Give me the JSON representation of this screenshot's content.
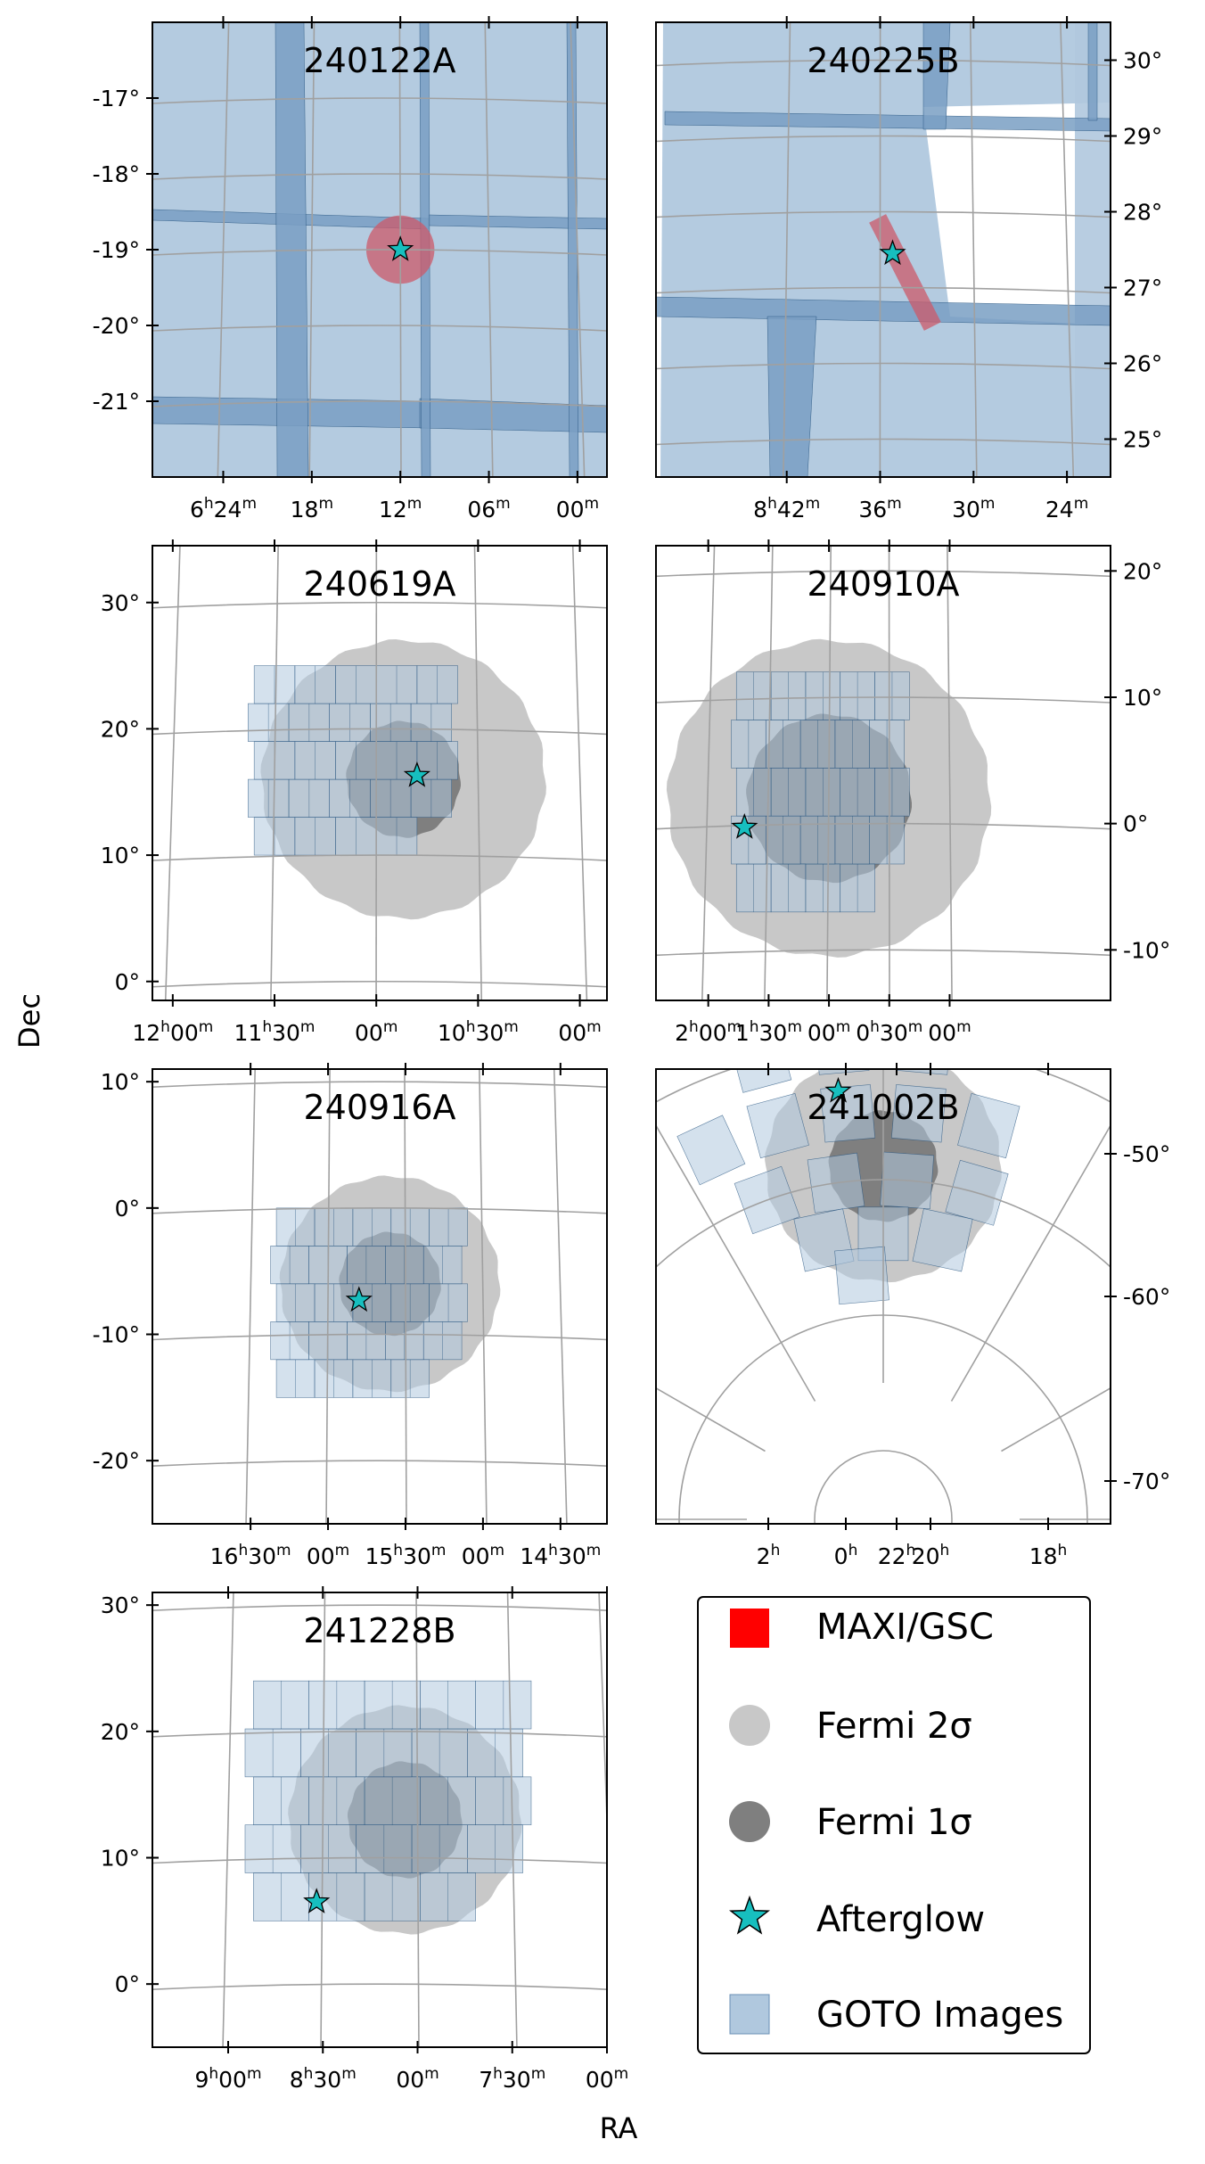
{
  "figure": {
    "xlabel": "RA",
    "ylabel": "Dec"
  },
  "legend": {
    "placement": "bottom-right panel",
    "items": [
      {
        "label": "MAXI/GSC",
        "marker": "square",
        "color": "#ff0000"
      },
      {
        "label": "Fermi 2σ",
        "marker": "circle",
        "color": "#c8c8c8"
      },
      {
        "label": "Fermi 1σ",
        "marker": "circle",
        "color": "#7f7f7f"
      },
      {
        "label": "Afterglow",
        "marker": "star",
        "color": "#17bfbf"
      },
      {
        "label": "GOTO Images",
        "marker": "square",
        "color": "#b0c8de"
      }
    ]
  },
  "colors": {
    "goto_fill": "#b0c8de",
    "goto_edge": "#1f4e7a",
    "goto_overlap": "#7a9fc4",
    "fermi_2sigma": "#c8c8c8",
    "fermi_1sigma": "#7f7f7f",
    "maxi": "#cc5a6a",
    "afterglow": "#17bfbf",
    "grid": "#a0a0a0"
  },
  "chart_data": [
    {
      "type": "scatter",
      "title": "240122A",
      "ra_min_deg": 89.5,
      "ra_max_deg": 97.2,
      "dec_min": -22.0,
      "dec_max": -16.0,
      "x_tick_labels": [
        {
          "h": "6",
          "m": "24",
          "ra_deg": 96.0
        },
        {
          "h": "",
          "m": "18",
          "ra_deg": 94.5
        },
        {
          "h": "",
          "m": "12",
          "ra_deg": 93.0
        },
        {
          "h": "",
          "m": "06",
          "ra_deg": 91.5
        },
        {
          "h": "",
          "m": "00",
          "ra_deg": 90.0
        }
      ],
      "y_ticks": [
        -17,
        -18,
        -19,
        -20,
        -21
      ],
      "y_tick_labels": [
        "-17°",
        "-18°",
        "-19°",
        "-20°",
        "-21°"
      ],
      "y_axis_side": "left",
      "coverage": "full",
      "maxi_error_region": {
        "ra": 93.0,
        "dec": -19.0,
        "radius_deg": 0.45
      },
      "afterglow": {
        "ra": 93.0,
        "dec": -19.0
      }
    },
    {
      "type": "scatter",
      "title": "240225B",
      "ra_min_deg": 125.3,
      "ra_max_deg": 132.6,
      "dec_min": 24.5,
      "dec_max": 30.5,
      "x_tick_labels": [
        {
          "h": "8",
          "m": "42",
          "ra_deg": 130.5
        },
        {
          "h": "",
          "m": "36",
          "ra_deg": 129.0
        },
        {
          "h": "",
          "m": "30",
          "ra_deg": 127.5
        },
        {
          "h": "",
          "m": "24",
          "ra_deg": 126.0
        }
      ],
      "y_ticks": [
        30,
        29,
        28,
        27,
        26,
        25
      ],
      "y_tick_labels": [
        "30°",
        "29°",
        "28°",
        "27°",
        "26°",
        "25°"
      ],
      "y_axis_side": "right",
      "coverage": "partial",
      "maxi_error_region": {
        "ra": 128.6,
        "dec": 27.2,
        "length_deg": 1.6,
        "width_deg": 0.25,
        "angle_deg": 63
      },
      "afterglow": {
        "ra": 128.8,
        "dec": 27.45
      }
    },
    {
      "type": "scatter",
      "title": "240619A",
      "ra_min_deg": 148.0,
      "ra_max_deg": 181.5,
      "dec_min": -1.5,
      "dec_max": 34.5,
      "x_tick_labels": [
        {
          "h": "12",
          "m": "00",
          "ra_deg": 180.0
        },
        {
          "h": "11",
          "m": "30",
          "ra_deg": 172.5
        },
        {
          "h": "",
          "m": "00",
          "ra_deg": 165.0
        },
        {
          "h": "10",
          "m": "30",
          "ra_deg": 157.5
        },
        {
          "h": "",
          "m": "00",
          "ra_deg": 150.0
        }
      ],
      "y_ticks": [
        30,
        20,
        10,
        0
      ],
      "y_tick_labels": [
        "30°",
        "20°",
        "10°",
        "0°"
      ],
      "y_axis_side": "left",
      "fermi": {
        "ra": 163.0,
        "dec": 16.0,
        "r1": 4.5,
        "r2": 11.0
      },
      "goto_tiles": {
        "ra0": 159.0,
        "ra1": 174.0,
        "dec0": 10.0,
        "dec1": 25.0
      },
      "afterglow": {
        "ra": 162.0,
        "dec": 16.3
      }
    },
    {
      "type": "scatter",
      "title": "240910A",
      "ra_min_deg": -20.0,
      "ra_max_deg": 36.5,
      "dec_min": -14.0,
      "dec_max": 22.0,
      "x_tick_labels": [
        {
          "h": "2",
          "m": "00",
          "ra_deg": 30.0
        },
        {
          "h": "1",
          "m": "30",
          "ra_deg": 22.5
        },
        {
          "h": "",
          "m": "00",
          "ra_deg": 15.0
        },
        {
          "h": "0",
          "m": "30",
          "ra_deg": 7.5
        },
        {
          "h": "",
          "m": "00",
          "ra_deg": 0.0
        }
      ],
      "y_ticks": [
        20,
        10,
        0,
        -10
      ],
      "y_tick_labels": [
        "20°",
        "10°",
        "0°",
        "-10°"
      ],
      "y_axis_side": "right",
      "fermi": {
        "ra": 15.0,
        "dec": 2.0,
        "r1": 6.5,
        "r2": 12.5
      },
      "goto_tiles": {
        "ra0": 5.0,
        "ra1": 26.5,
        "dec0": -7.0,
        "dec1": 12.0
      },
      "afterglow": {
        "ra": 25.5,
        "dec": -0.3
      }
    },
    {
      "type": "scatter",
      "title": "240916A",
      "ra_min_deg": 213.0,
      "ra_max_deg": 257.0,
      "dec_min": -25.0,
      "dec_max": 11.0,
      "x_tick_labels": [
        {
          "h": "16",
          "m": "30",
          "ra_deg": 247.5
        },
        {
          "h": "",
          "m": "00",
          "ra_deg": 240.0
        },
        {
          "h": "15",
          "m": "30",
          "ra_deg": 232.5
        },
        {
          "h": "",
          "m": "00",
          "ra_deg": 225.0
        },
        {
          "h": "14",
          "m": "30",
          "ra_deg": 217.5
        }
      ],
      "y_ticks": [
        10,
        0,
        -10,
        -20
      ],
      "y_tick_labels": [
        "10°",
        "0°",
        "-10°",
        "-20°"
      ],
      "y_axis_side": "left",
      "fermi": {
        "ra": 234.0,
        "dec": -6.0,
        "r1": 4.0,
        "r2": 8.5
      },
      "goto_tiles": {
        "ra0": 226.5,
        "ra1": 245.0,
        "dec0": -15.0,
        "dec1": 0.0
      },
      "afterglow": {
        "ra": 237.0,
        "dec": -7.3
      }
    },
    {
      "type": "scatter",
      "title": "241002B",
      "ra_min_deg": 243.0,
      "ra_max_deg": 380.0,
      "dec_min": -71.0,
      "dec_max": -45.0,
      "projection": "polar",
      "x_tick_labels": [
        {
          "h": "2",
          "m": "",
          "ra_deg": 30.0
        },
        {
          "h": "0",
          "m": "",
          "ra_deg": 0.0
        },
        {
          "h": "22",
          "m": "",
          "ra_deg": 330.0
        },
        {
          "h": "20",
          "m": "",
          "ra_deg": 300.0
        },
        {
          "h": "18",
          "m": "",
          "ra_deg": 270.0
        }
      ],
      "y_ticks": [
        -50,
        -60,
        -70
      ],
      "y_tick_labels": [
        "-50°",
        "-60°",
        "-70°"
      ],
      "y_axis_side": "right",
      "fermi": {
        "ra": 330.0,
        "dec": -59.0,
        "r1": 4.0,
        "r2": 8.5
      },
      "afterglow": {
        "ra": 324.0,
        "dec": -53.3
      }
    },
    {
      "type": "scatter",
      "title": "241228B",
      "ra_min_deg": 105.0,
      "ra_max_deg": 141.0,
      "dec_min": -5.0,
      "dec_max": 31.0,
      "x_tick_labels": [
        {
          "h": "9",
          "m": "00",
          "ra_deg": 135.0
        },
        {
          "h": "8",
          "m": "30",
          "ra_deg": 127.5
        },
        {
          "h": "",
          "m": "00",
          "ra_deg": 120.0
        },
        {
          "h": "7",
          "m": "30",
          "ra_deg": 112.5
        },
        {
          "h": "",
          "m": "00",
          "ra_deg": 105.0
        }
      ],
      "y_ticks": [
        30,
        20,
        10,
        0
      ],
      "y_tick_labels": [
        "30°",
        "20°",
        "10°",
        "0°"
      ],
      "y_axis_side": "left",
      "fermi": {
        "ra": 121.0,
        "dec": 13.0,
        "r1": 4.5,
        "r2": 9.0
      },
      "goto_tiles": {
        "ra0": 111.0,
        "ra1": 133.0,
        "dec0": 5.0,
        "dec1": 24.0
      },
      "afterglow": {
        "ra": 128.0,
        "dec": 6.5
      }
    }
  ]
}
